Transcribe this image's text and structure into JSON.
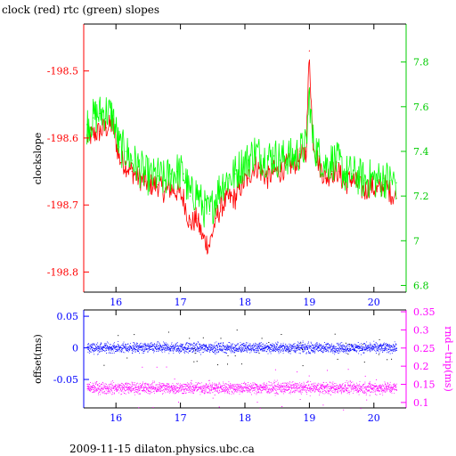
{
  "page_title": "clock (red) rtc (green) slopes",
  "footer": "2009-11-15  dilaton.physics.ubc.ca",
  "colors": {
    "clock": "#ff0000",
    "rtc": "#00ff00",
    "offset": "#0000ff",
    "rnd_trip": "#ff00ff",
    "left_axis_top": "#ff0000",
    "right_axis_top": "#00cc00",
    "left_axis_bottom": "#0000ff",
    "right_axis_bottom": "#ff00ff"
  },
  "chart_data": [
    {
      "type": "line",
      "title": "clock (red) rtc (green) slopes",
      "ylabel": "clockslope",
      "xlabel": "",
      "xlim": [
        15.5,
        20.5
      ],
      "ylim": [
        -198.83,
        -198.43
      ],
      "y2lim": [
        6.77,
        7.97
      ],
      "x_ticks": [
        "16",
        "17",
        "18",
        "19",
        "20"
      ],
      "y_ticks": [
        "-198.5",
        "-198.6",
        "-198.7",
        "-198.8"
      ],
      "y2_ticks": [
        "7.8",
        "7.6",
        "7.4",
        "7.2",
        "7",
        "6.8"
      ],
      "series": [
        {
          "name": "clock",
          "axis": "left",
          "x": [
            15.55,
            15.65,
            15.75,
            15.85,
            15.95,
            16.05,
            16.15,
            16.25,
            16.35,
            16.45,
            16.55,
            16.65,
            16.75,
            16.85,
            16.95,
            17.05,
            17.15,
            17.25,
            17.35,
            17.45,
            17.55,
            17.65,
            17.75,
            17.85,
            17.95,
            18.05,
            18.15,
            18.25,
            18.35,
            18.45,
            18.55,
            18.65,
            18.75,
            18.85,
            18.95,
            19.0,
            19.05,
            19.15,
            19.25,
            19.35,
            19.45,
            19.55,
            19.65,
            19.75,
            19.85,
            19.95,
            20.05,
            20.15,
            20.25,
            20.35
          ],
          "values": [
            -198.6,
            -198.595,
            -198.59,
            -198.585,
            -198.58,
            -198.63,
            -198.64,
            -198.65,
            -198.66,
            -198.665,
            -198.67,
            -198.67,
            -198.68,
            -198.675,
            -198.68,
            -198.69,
            -198.73,
            -198.72,
            -198.75,
            -198.76,
            -198.72,
            -198.7,
            -198.69,
            -198.69,
            -198.67,
            -198.66,
            -198.64,
            -198.65,
            -198.66,
            -198.65,
            -198.65,
            -198.64,
            -198.64,
            -198.63,
            -198.62,
            -198.47,
            -198.6,
            -198.64,
            -198.66,
            -198.65,
            -198.65,
            -198.67,
            -198.66,
            -198.67,
            -198.68,
            -198.67,
            -198.68,
            -198.67,
            -198.68,
            -198.69
          ]
        },
        {
          "name": "rtc",
          "axis": "right",
          "x": [
            15.55,
            15.65,
            15.75,
            15.85,
            15.95,
            16.05,
            16.15,
            16.25,
            16.35,
            16.45,
            16.55,
            16.65,
            16.75,
            16.85,
            16.95,
            17.05,
            17.15,
            17.25,
            17.35,
            17.45,
            17.55,
            17.65,
            17.75,
            17.85,
            17.95,
            18.05,
            18.15,
            18.25,
            18.35,
            18.45,
            18.55,
            18.65,
            18.75,
            18.85,
            18.95,
            19.0,
            19.05,
            19.15,
            19.25,
            19.35,
            19.45,
            19.55,
            19.65,
            19.75,
            19.85,
            19.95,
            20.05,
            20.15,
            20.25,
            20.35
          ],
          "values": [
            7.52,
            7.55,
            7.57,
            7.58,
            7.56,
            7.42,
            7.4,
            7.36,
            7.33,
            7.3,
            7.28,
            7.29,
            7.27,
            7.3,
            7.31,
            7.3,
            7.2,
            7.22,
            7.15,
            7.12,
            7.2,
            7.26,
            7.28,
            7.3,
            7.34,
            7.36,
            7.4,
            7.38,
            7.37,
            7.38,
            7.36,
            7.38,
            7.37,
            7.4,
            7.42,
            7.66,
            7.45,
            7.38,
            7.34,
            7.36,
            7.35,
            7.3,
            7.3,
            7.29,
            7.27,
            7.28,
            7.27,
            7.28,
            7.27,
            7.26
          ]
        }
      ]
    },
    {
      "type": "scatter",
      "title": "",
      "ylabel": "offset(ms)",
      "y2label": "rnd−trip(ms)",
      "xlim": [
        15.5,
        20.5
      ],
      "ylim": [
        -0.095,
        0.06
      ],
      "y2lim": [
        0.085,
        0.355
      ],
      "x_ticks": [
        "16",
        "17",
        "18",
        "19",
        "20"
      ],
      "y_ticks": [
        "0.05",
        "0",
        "-0.05"
      ],
      "y2_ticks": [
        "0.35",
        "0.3",
        "0.25",
        "0.2",
        "0.15",
        "0.1"
      ],
      "series": [
        {
          "name": "offset",
          "axis": "left",
          "x_range": [
            15.55,
            20.35
          ],
          "center": 0.0,
          "spread": 0.006
        },
        {
          "name": "rnd-trip",
          "axis": "right",
          "x_range": [
            15.55,
            20.35
          ],
          "center": 0.14,
          "spread": 0.012
        }
      ]
    }
  ]
}
